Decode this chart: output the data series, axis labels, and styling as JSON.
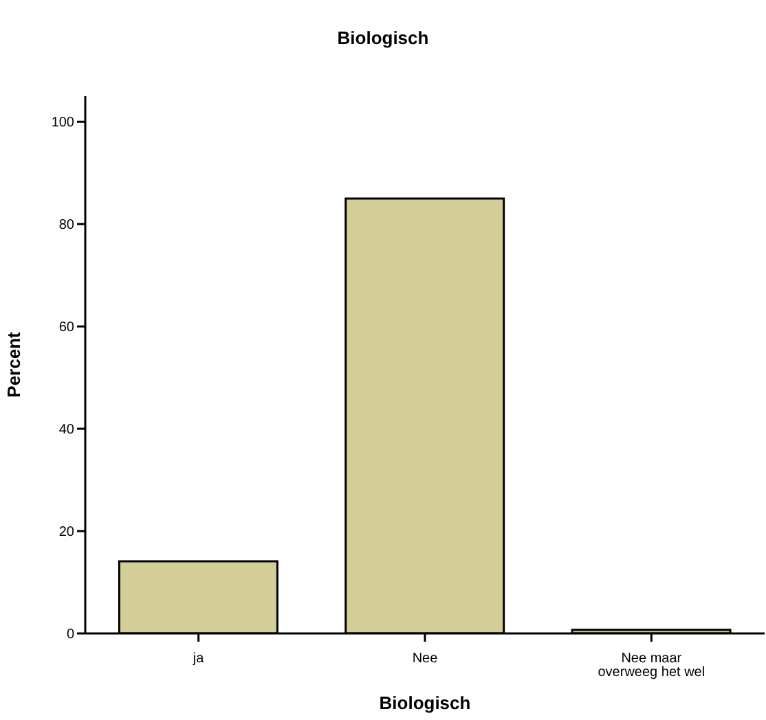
{
  "chart_data": {
    "type": "bar",
    "title": "Biologisch",
    "xlabel": "Biologisch",
    "ylabel": "Percent",
    "categories": [
      "ja",
      "Nee",
      "Nee maar overweeg het wel"
    ],
    "values": [
      14.1,
      85.0,
      0.7
    ],
    "color": "#d3ce97",
    "ylim": [
      0,
      105
    ],
    "yticks": [
      0,
      20,
      40,
      60,
      80,
      100
    ],
    "grid": false
  }
}
